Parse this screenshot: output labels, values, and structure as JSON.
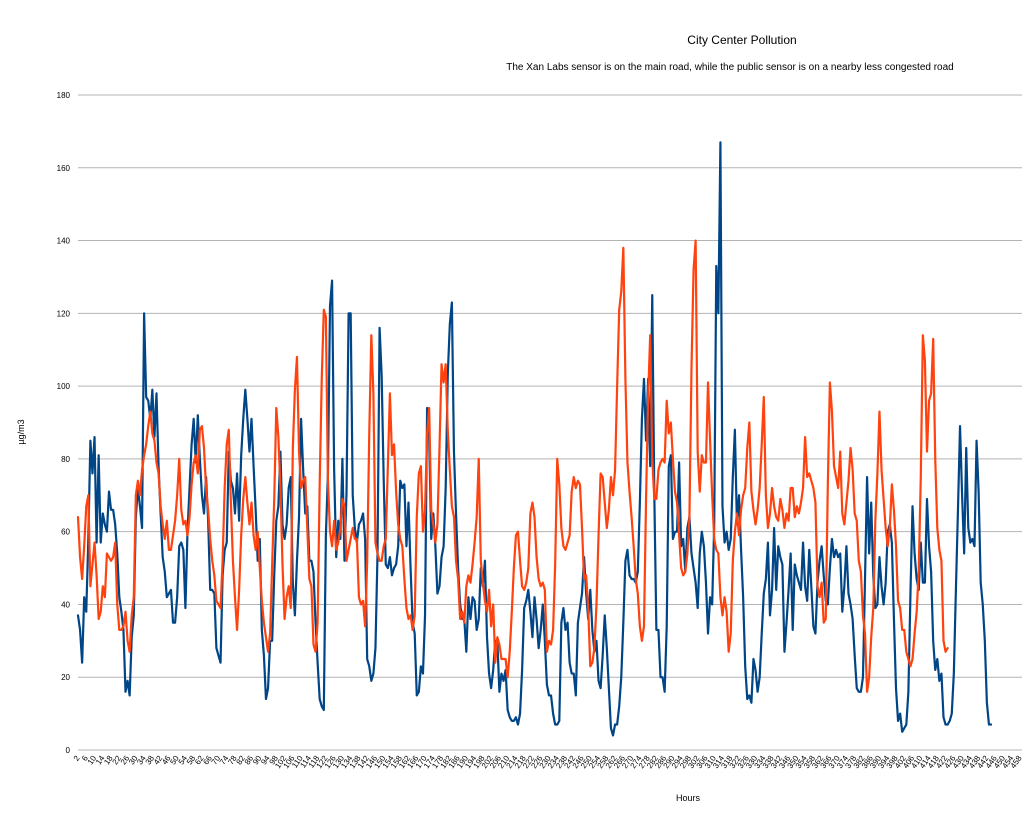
{
  "chart_data": {
    "type": "line",
    "title": "City Center Pollution",
    "subtitle": "The Xan Labs sensor is on the main road, while the public sensor is on a nearby less congested road",
    "xlabel": "Hours",
    "ylabel": "µg/m3",
    "ylim": [
      0,
      180
    ],
    "yticks": [
      0,
      20,
      40,
      60,
      80,
      100,
      120,
      140,
      160,
      180
    ],
    "x_start": 1,
    "x_step": 1,
    "x_max": 458,
    "xtick_labels": [
      "2",
      "6",
      "10",
      "14",
      "18",
      "22",
      "26",
      "30",
      "34",
      "38",
      "42",
      "46",
      "50",
      "54",
      "58",
      "62",
      "66",
      "70",
      "74",
      "78",
      "82",
      "86",
      "90",
      "94",
      "98",
      "102",
      "106",
      "110",
      "114",
      "118",
      "122",
      "126",
      "130",
      "134",
      "138",
      "142",
      "146",
      "150",
      "154",
      "158",
      "162",
      "166",
      "170",
      "174",
      "178",
      "182",
      "186",
      "190",
      "194",
      "198",
      "202",
      "206",
      "210",
      "214",
      "218",
      "222",
      "226",
      "230",
      "234",
      "238",
      "242",
      "246",
      "250",
      "254",
      "258",
      "262",
      "266",
      "270",
      "274",
      "278",
      "282",
      "286",
      "290",
      "294",
      "298",
      "302",
      "306",
      "310",
      "314",
      "318",
      "322",
      "326",
      "330",
      "334",
      "338",
      "342",
      "346",
      "350",
      "354",
      "358",
      "362",
      "366",
      "370",
      "374",
      "378",
      "382",
      "386",
      "390",
      "394",
      "398",
      "402",
      "406",
      "410",
      "414",
      "418",
      "422",
      "426",
      "430",
      "434",
      "438",
      "442",
      "446",
      "450",
      "454",
      "458"
    ],
    "grid": "horizontal",
    "legend": "none",
    "series": [
      {
        "color": "#004586",
        "values": [
          37,
          33,
          24,
          42,
          38,
          58,
          85,
          76,
          86,
          57,
          81,
          57,
          65,
          62,
          60,
          71,
          66,
          66,
          62,
          54,
          42,
          38,
          33,
          16,
          19,
          15,
          31,
          37,
          64,
          72,
          67,
          61,
          120,
          97,
          96,
          91,
          99,
          86,
          98,
          78,
          65,
          53,
          49,
          42,
          43,
          44,
          35,
          35,
          42,
          56,
          57,
          55,
          39,
          60,
          72,
          84,
          91,
          79,
          92,
          80,
          70,
          65,
          75,
          63,
          44,
          44,
          43,
          28,
          26,
          24,
          48,
          55,
          57,
          82,
          74,
          72,
          65,
          76,
          63,
          81,
          91,
          99,
          91,
          82,
          91,
          78,
          66,
          52,
          58,
          33,
          26,
          14,
          17,
          30,
          30,
          48,
          63,
          67,
          82,
          62,
          58,
          62,
          72,
          75,
          46,
          37,
          52,
          64,
          91,
          77,
          65,
          67,
          52,
          52,
          49,
          35,
          24,
          14,
          12,
          11,
          59,
          76,
          122,
          129,
          77,
          53,
          63,
          58,
          80,
          52,
          71,
          120,
          120,
          70,
          61,
          57,
          62,
          63,
          65,
          58,
          25,
          23,
          19,
          21,
          28,
          54,
          116,
          103,
          74,
          51,
          50,
          53,
          48,
          50,
          51,
          56,
          74,
          72,
          73,
          56,
          68,
          50,
          35,
          32,
          15,
          16,
          23,
          21,
          37,
          94,
          86,
          58,
          65,
          56,
          43,
          45,
          53,
          56,
          72,
          103,
          117,
          123,
          82,
          65,
          50,
          40,
          36,
          36,
          27,
          42,
          36,
          42,
          41,
          33,
          36,
          50,
          45,
          52,
          31,
          21,
          17,
          22,
          30,
          30,
          16,
          21,
          19,
          22,
          11,
          9,
          8,
          8,
          9,
          7,
          10,
          22,
          39,
          41,
          44,
          38,
          31,
          42,
          36,
          28,
          33,
          40,
          30,
          18,
          15,
          15,
          10,
          7,
          7,
          8,
          35,
          39,
          33,
          35,
          24,
          21,
          21,
          15,
          35,
          39,
          43,
          53,
          43,
          36,
          44,
          33,
          27,
          30,
          19,
          17,
          26,
          37,
          28,
          17,
          6,
          4,
          7,
          7,
          12,
          20,
          35,
          52,
          55,
          48,
          47,
          47,
          46,
          49,
          68,
          91,
          102,
          85,
          102,
          78,
          125,
          70,
          33,
          33,
          20,
          20,
          16,
          34,
          78,
          81,
          58,
          60,
          60,
          79,
          56,
          58,
          49,
          61,
          64,
          54,
          50,
          46,
          39,
          54,
          60,
          56,
          46,
          32,
          42,
          40,
          62,
          133,
          120,
          167,
          67,
          57,
          60,
          55,
          58,
          75,
          88,
          62,
          70,
          55,
          42,
          23,
          14,
          15,
          13,
          25,
          22,
          16,
          20,
          32,
          43,
          47,
          57,
          37,
          44,
          61,
          44,
          56,
          53,
          51,
          27,
          35,
          44,
          54,
          33,
          51,
          48,
          46,
          44,
          57,
          45,
          41,
          55,
          45,
          34,
          32,
          46,
          52,
          56,
          48,
          41,
          40,
          50,
          58,
          53,
          55,
          53,
          54,
          38,
          45,
          56,
          43,
          40,
          36,
          26,
          17,
          16,
          16,
          20,
          47,
          75,
          54,
          68,
          48,
          39,
          40,
          53,
          45,
          40,
          46,
          60,
          62,
          57,
          36,
          17,
          8,
          10,
          5,
          6,
          7,
          16,
          43,
          67,
          54,
          47,
          44,
          57,
          46,
          46,
          69,
          56,
          49,
          30,
          22,
          25,
          19,
          21,
          9,
          7,
          7,
          8,
          10,
          21,
          44,
          66,
          89,
          70,
          54,
          83,
          61,
          57,
          58,
          56,
          85,
          71,
          46,
          40,
          30,
          13,
          7,
          7
        ]
      },
      {
        "color": "#ff420e",
        "values": [
          64,
          53,
          47,
          56,
          67,
          70,
          45,
          51,
          57,
          48,
          36,
          38,
          45,
          42,
          54,
          53,
          52,
          53,
          57,
          40,
          33,
          33,
          34,
          38,
          30,
          27,
          37,
          42,
          70,
          74,
          70,
          77,
          81,
          84,
          89,
          93,
          87,
          85,
          79,
          76,
          67,
          62,
          58,
          63,
          55,
          55,
          59,
          63,
          70,
          80,
          66,
          62,
          63,
          59,
          64,
          73,
          79,
          81,
          76,
          88,
          89,
          83,
          72,
          66,
          58,
          52,
          48,
          41,
          40,
          39,
          52,
          72,
          84,
          88,
          68,
          52,
          42,
          33,
          44,
          59,
          69,
          75,
          68,
          62,
          68,
          59,
          55,
          60,
          50,
          41,
          35,
          31,
          27,
          32,
          51,
          69,
          94,
          86,
          72,
          51,
          36,
          42,
          45,
          39,
          83,
          99,
          108,
          82,
          72,
          74,
          75,
          61,
          47,
          45,
          29,
          27,
          35,
          73,
          102,
          121,
          119,
          74,
          60,
          56,
          63,
          55,
          57,
          61,
          69,
          67,
          52,
          55,
          58,
          61,
          58,
          58,
          42,
          40,
          41,
          34,
          52,
          87,
          114,
          98,
          57,
          54,
          52,
          52,
          56,
          58,
          78,
          98,
          81,
          84,
          71,
          62,
          58,
          56,
          47,
          39,
          36,
          37,
          33,
          37,
          64,
          76,
          78,
          60,
          66,
          87,
          94,
          66,
          62,
          57,
          62,
          83,
          106,
          101,
          106,
          88,
          77,
          67,
          64,
          52,
          47,
          36,
          38,
          35,
          45,
          48,
          46,
          51,
          57,
          64,
          80,
          52,
          46,
          41,
          38,
          44,
          34,
          40,
          24,
          31,
          29,
          25,
          25,
          25,
          20,
          27,
          38,
          50,
          59,
          60,
          52,
          45,
          44,
          46,
          50,
          65,
          68,
          64,
          53,
          47,
          45,
          46,
          44,
          27,
          30,
          29,
          33,
          51,
          80,
          73,
          61,
          56,
          55,
          57,
          59,
          71,
          75,
          72,
          74,
          73,
          61,
          47,
          48,
          39,
          23,
          24,
          28,
          40,
          59,
          76,
          75,
          68,
          61,
          66,
          75,
          70,
          77,
          100,
          121,
          126,
          138,
          102,
          79,
          71,
          64,
          56,
          47,
          43,
          34,
          30,
          34,
          69,
          97,
          114,
          80,
          69,
          69,
          77,
          79,
          80,
          79,
          96,
          87,
          90,
          80,
          71,
          68,
          59,
          50,
          48,
          49,
          54,
          64,
          105,
          132,
          140,
          82,
          71,
          81,
          79,
          79,
          101,
          85,
          70,
          58,
          55,
          54,
          42,
          37,
          42,
          38,
          27,
          32,
          52,
          60,
          65,
          59,
          66,
          70,
          72,
          83,
          90,
          71,
          66,
          62,
          66,
          72,
          84,
          97,
          70,
          61,
          65,
          72,
          67,
          64,
          63,
          69,
          66,
          61,
          65,
          63,
          72,
          72,
          64,
          67,
          65,
          68,
          72,
          86,
          75,
          76,
          74,
          72,
          68,
          45,
          42,
          46,
          35,
          36,
          73,
          101,
          93,
          78,
          75,
          72,
          82,
          65,
          62,
          68,
          74,
          83,
          77,
          65,
          63,
          52,
          49,
          37,
          32,
          16,
          20,
          31,
          39,
          63,
          76,
          93,
          77,
          69,
          61,
          56,
          61,
          73,
          66,
          56,
          41,
          39,
          33,
          33,
          27,
          25,
          23,
          25,
          32,
          38,
          49,
          75,
          114,
          107,
          82,
          96,
          98,
          113,
          80,
          61,
          55,
          52,
          30,
          27,
          28
        ]
      }
    ]
  }
}
